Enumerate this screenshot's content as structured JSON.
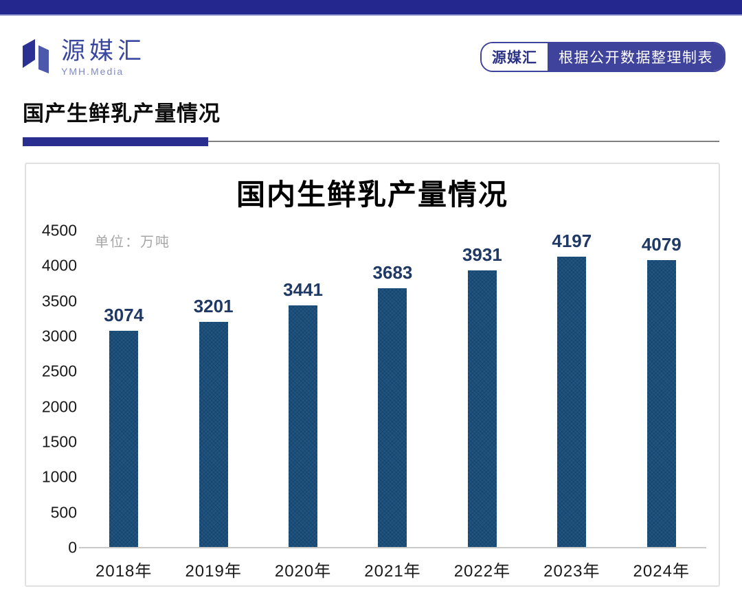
{
  "colors": {
    "top_strip": "#24278e",
    "badge_blue": "#3f439b",
    "accent": "#2a2e8f",
    "bar": "#1f5380",
    "value_label": "#1f3864"
  },
  "header": {
    "logo": {
      "brand": "源媒汇",
      "subtitle": "YMH.Media"
    },
    "badge": {
      "brand": "源媒汇",
      "label": "根据公开数据整理制表"
    }
  },
  "section": {
    "title": "国产生鲜乳产量情况"
  },
  "chart_data": {
    "type": "bar",
    "title": "国内生鲜乳产量情况",
    "unit_label": "单位：万吨",
    "categories": [
      "2018年",
      "2019年",
      "2020年",
      "2021年",
      "2022年",
      "2023年",
      "2024年"
    ],
    "values": [
      3074,
      3201,
      3441,
      3683,
      3931,
      4197,
      4079
    ],
    "xlabel": "",
    "ylabel": "",
    "ylim": [
      0,
      4500
    ],
    "yticks": [
      0,
      500,
      1000,
      1500,
      2000,
      2500,
      3000,
      3500,
      4000,
      4500
    ],
    "grid": false,
    "legend": "none",
    "bar_color": "#1f5380",
    "value_label_color": "#1f3864"
  }
}
